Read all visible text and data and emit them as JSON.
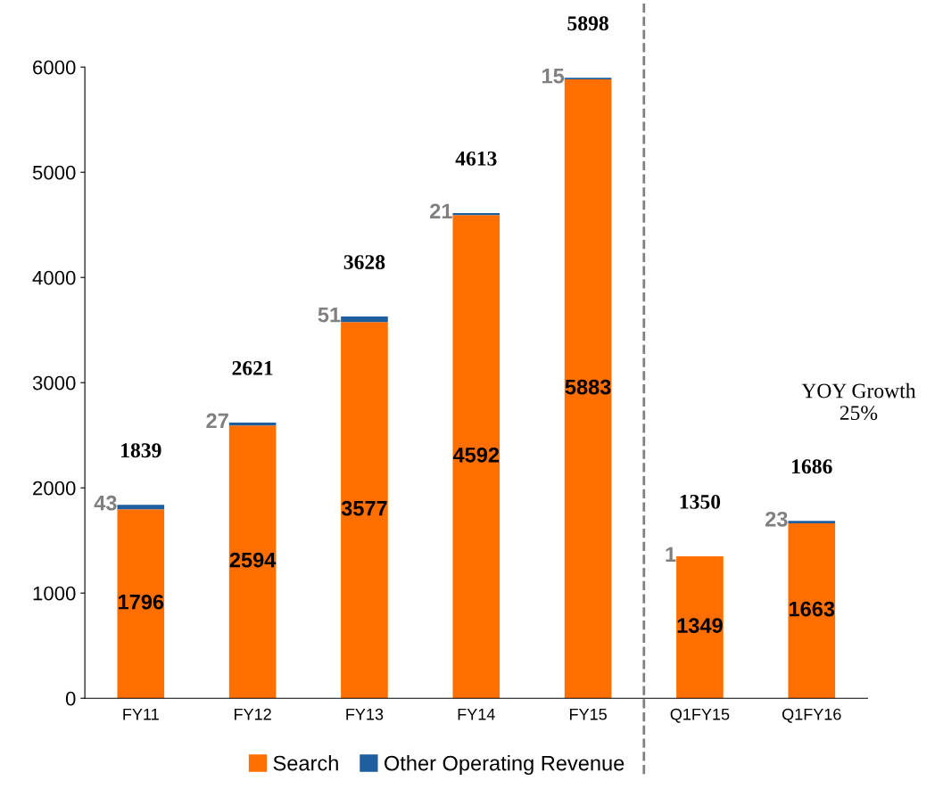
{
  "chart_data": {
    "type": "bar",
    "stacked": true,
    "categories": [
      "FY11",
      "FY12",
      "FY13",
      "FY14",
      "FY15",
      "Q1FY15",
      "Q1FY16"
    ],
    "series": [
      {
        "name": "Search",
        "color": "#ff6f00",
        "values": [
          1796,
          2594,
          3577,
          4592,
          5883,
          1349,
          1663
        ]
      },
      {
        "name": "Other Operating Revenue",
        "color": "#1f5f9f",
        "values": [
          43,
          27,
          51,
          21,
          15,
          1,
          23
        ]
      }
    ],
    "totals": [
      "1839",
      "2621",
      "3628",
      "4613",
      "5898",
      "1350",
      "1686"
    ],
    "data_labels": true,
    "ylim": [
      0,
      6000
    ],
    "yticks": [
      0,
      1000,
      2000,
      3000,
      4000,
      5000,
      6000
    ],
    "grid": false,
    "legend": "bottom",
    "annotations": [
      "YOY Growth\n25%"
    ]
  }
}
